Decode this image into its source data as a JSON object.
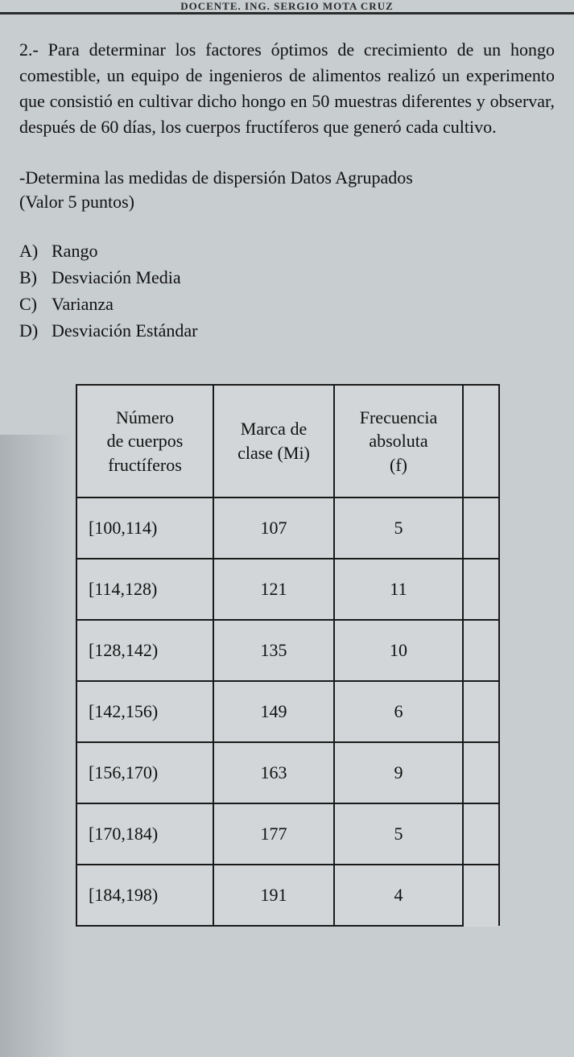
{
  "header": {
    "partial_title": "DOCENTE. ING. SERGIO MOTA CRUZ"
  },
  "question": {
    "number_prefix": "2.-",
    "body": "Para determinar los factores óptimos de crecimiento de un hongo comestible, un equipo de ingenieros de alimentos realizó un experimento que consistió en cultivar dicho hongo en 50 muestras diferentes y observar, después de 60 días, los cuerpos fructíferos que generó cada cultivo."
  },
  "instruction": {
    "line1": "-Determina las medidas de dispersión Datos Agrupados",
    "line2": "(Valor 5 puntos)"
  },
  "options": [
    {
      "letter": "A)",
      "text": "Rango"
    },
    {
      "letter": "B)",
      "text": "Desviación Media"
    },
    {
      "letter": "C)",
      "text": "Varianza"
    },
    {
      "letter": "D)",
      "text": "Desviación Estándar"
    }
  ],
  "table": {
    "headers": {
      "col1_line1": "Número",
      "col1_line2": "de cuerpos",
      "col1_line3": "fructíferos",
      "col2_line1": "Marca de",
      "col2_line2": "clase (Mi)",
      "col3_line1": "Frecuencia",
      "col3_line2": "absoluta",
      "col3_line3": "(f)"
    },
    "rows": [
      {
        "interval": "[100,114)",
        "mark": "107",
        "freq": "5"
      },
      {
        "interval": "[114,128)",
        "mark": "121",
        "freq": "11"
      },
      {
        "interval": "[128,142)",
        "mark": "135",
        "freq": "10"
      },
      {
        "interval": "[142,156)",
        "mark": "149",
        "freq": "6"
      },
      {
        "interval": "[156,170)",
        "mark": "163",
        "freq": "9"
      },
      {
        "interval": "[170,184)",
        "mark": "177",
        "freq": "5"
      },
      {
        "interval": "[184,198)",
        "mark": "191",
        "freq": "4"
      }
    ]
  },
  "colors": {
    "page_bg": "#c8cdd0",
    "text": "#111111",
    "border": "#1a1a1a"
  }
}
